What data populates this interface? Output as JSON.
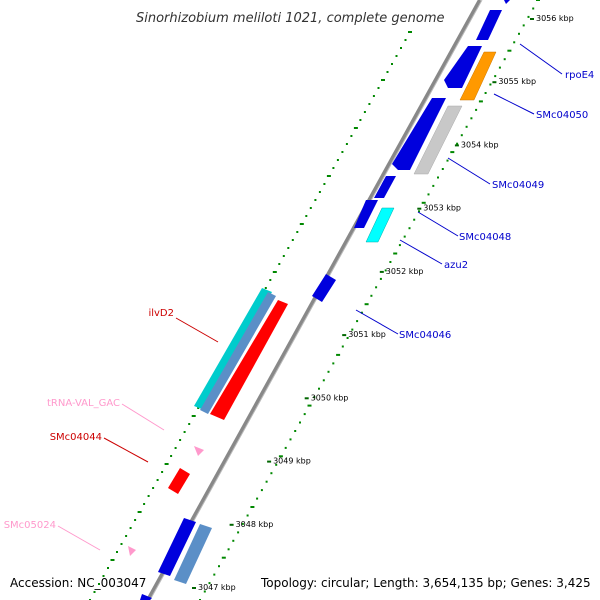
{
  "title": "Sinorhizobium meliloti 1021, complete genome",
  "footer": {
    "accession": "Accession: NC_003047",
    "summary": "Topology: circular; Length: 3,654,135 bp; Genes: 3,425"
  },
  "scale_ticks": [
    "3047 kbp",
    "3048 kbp",
    "3049 kbp",
    "3050 kbp",
    "3051 kbp",
    "3052 kbp",
    "3053 kbp",
    "3054 kbp",
    "3055 kbp",
    "3056 kbp"
  ],
  "gene_labels": [
    {
      "text": "rpoE4",
      "color": "#0000cc"
    },
    {
      "text": "SMc04050",
      "color": "#0000cc"
    },
    {
      "text": "SMc04049",
      "color": "#0000cc"
    },
    {
      "text": "SMc04048",
      "color": "#0000cc"
    },
    {
      "text": "azu2",
      "color": "#0000cc"
    },
    {
      "text": "SMc04046",
      "color": "#0000cc"
    },
    {
      "text": "ilvD2",
      "color": "#cc0000"
    },
    {
      "text": "tRNA-VAL_GAC",
      "color": "#ff99cc"
    },
    {
      "text": "SMc04044",
      "color": "#cc0000"
    },
    {
      "text": "SMc05024",
      "color": "#ff99cc"
    }
  ],
  "colors": {
    "backbone": "#888888",
    "gene_plus": "#0000dd",
    "gene_minus": "#ff0000",
    "trna": "#ff99cc",
    "hypothetical": "#c8c8c8",
    "orange": "#ff9900",
    "cyan": "#00ffff",
    "steel": "#5b8fc7",
    "teal": "#00cccc",
    "dots": "#008800"
  }
}
